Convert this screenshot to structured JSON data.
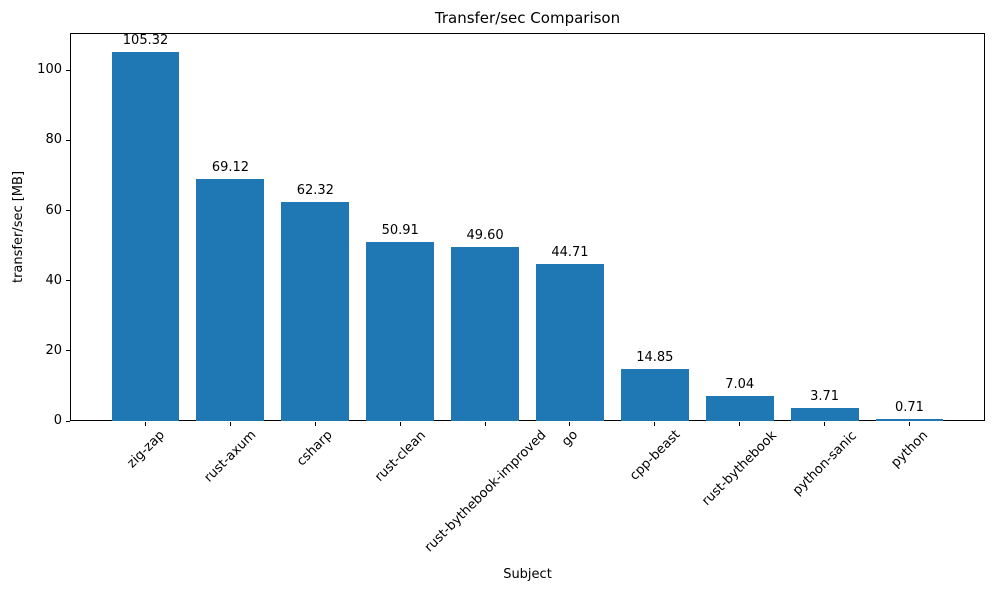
{
  "chart_data": {
    "type": "bar",
    "title": "Transfer/sec Comparison",
    "xlabel": "Subject",
    "ylabel": "transfer/sec [MB]",
    "categories": [
      "zig-zap",
      "rust-axum",
      "csharp",
      "rust-clean",
      "rust-bythebook-improved",
      "go",
      "cpp-beast",
      "rust-bythebook",
      "python-sanic",
      "python"
    ],
    "values": [
      105.32,
      69.12,
      62.32,
      50.91,
      49.6,
      44.71,
      14.85,
      7.04,
      3.71,
      0.71
    ],
    "bar_value_labels": [
      "105.32",
      "69.12",
      "62.32",
      "50.91",
      "49.60",
      "44.71",
      "14.85",
      "7.04",
      "3.71",
      "0.71"
    ],
    "yticks": [
      0,
      20,
      40,
      60,
      80,
      100
    ],
    "ytick_labels": [
      "0",
      "20",
      "40",
      "60",
      "80",
      "100"
    ],
    "ylim": [
      0,
      110.6
    ],
    "xtick_rotation_deg": 45,
    "bar_color": "#1f77b4",
    "axis_color": "#000000",
    "text_color": "#000000",
    "background_color": "#ffffff",
    "grid": false,
    "legend": null
  }
}
